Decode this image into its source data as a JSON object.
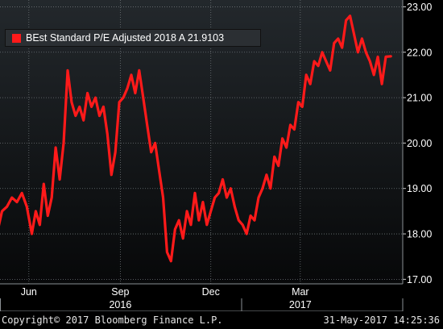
{
  "chart_data": {
    "type": "line",
    "series": [
      {
        "name": "BEst Standard P/E Adjusted 2018 A",
        "last_value_label": "21.9103",
        "color": "#ff1a1a",
        "x": [
          "2016-05-01",
          "2016-05-05",
          "2016-05-10",
          "2016-05-15",
          "2016-05-20",
          "2016-05-25",
          "2016-05-30",
          "2016-06-04",
          "2016-06-08",
          "2016-06-12",
          "2016-06-16",
          "2016-06-20",
          "2016-06-24",
          "2016-06-28",
          "2016-07-02",
          "2016-07-06",
          "2016-07-10",
          "2016-07-14",
          "2016-07-18",
          "2016-07-22",
          "2016-07-26",
          "2016-07-30",
          "2016-08-03",
          "2016-08-07",
          "2016-08-11",
          "2016-08-15",
          "2016-08-19",
          "2016-08-23",
          "2016-08-27",
          "2016-08-31",
          "2016-09-04",
          "2016-09-08",
          "2016-09-12",
          "2016-09-16",
          "2016-09-20",
          "2016-09-24",
          "2016-09-28",
          "2016-10-02",
          "2016-10-06",
          "2016-10-10",
          "2016-10-14",
          "2016-10-18",
          "2016-10-22",
          "2016-10-26",
          "2016-10-30",
          "2016-11-03",
          "2016-11-07",
          "2016-11-11",
          "2016-11-15",
          "2016-11-19",
          "2016-11-23",
          "2016-11-27",
          "2016-12-01",
          "2016-12-05",
          "2016-12-09",
          "2016-12-13",
          "2016-12-17",
          "2016-12-21",
          "2016-12-25",
          "2016-12-29",
          "2017-01-02",
          "2017-01-06",
          "2017-01-10",
          "2017-01-14",
          "2017-01-18",
          "2017-01-22",
          "2017-01-26",
          "2017-01-30",
          "2017-02-03",
          "2017-02-07",
          "2017-02-11",
          "2017-02-15",
          "2017-02-19",
          "2017-02-23",
          "2017-02-27",
          "2017-03-03",
          "2017-03-07",
          "2017-03-11",
          "2017-03-15",
          "2017-03-19",
          "2017-03-23",
          "2017-03-27",
          "2017-03-31",
          "2017-04-04",
          "2017-04-08",
          "2017-04-12",
          "2017-04-16",
          "2017-04-20",
          "2017-04-24",
          "2017-04-28",
          "2017-05-02",
          "2017-05-06",
          "2017-05-10",
          "2017-05-14",
          "2017-05-18",
          "2017-05-22",
          "2017-05-26",
          "2017-05-31"
        ],
        "y": [
          18.1,
          18.5,
          18.6,
          18.8,
          18.7,
          18.9,
          18.6,
          18.0,
          18.5,
          18.2,
          19.1,
          18.4,
          18.8,
          19.9,
          19.2,
          20.0,
          21.6,
          20.9,
          20.6,
          20.8,
          20.5,
          21.1,
          20.8,
          21.0,
          20.6,
          20.8,
          20.2,
          19.3,
          19.8,
          20.9,
          21.0,
          21.2,
          21.5,
          21.1,
          21.6,
          21.0,
          20.4,
          19.8,
          20.0,
          19.4,
          18.8,
          17.6,
          17.4,
          18.1,
          18.3,
          17.9,
          18.5,
          18.2,
          18.9,
          18.3,
          18.7,
          18.2,
          18.5,
          18.8,
          18.9,
          19.2,
          18.8,
          19.0,
          18.6,
          18.3,
          18.2,
          18.0,
          18.4,
          18.3,
          18.8,
          19.0,
          19.3,
          19.0,
          19.7,
          19.5,
          20.1,
          19.9,
          20.4,
          20.3,
          20.9,
          20.8,
          21.5,
          21.3,
          21.8,
          21.7,
          22.0,
          21.8,
          21.6,
          22.2,
          22.3,
          22.1,
          22.7,
          22.8,
          22.4,
          22.0,
          22.3,
          22.0,
          21.8,
          21.5,
          21.9,
          21.3,
          21.9,
          21.91
        ]
      }
    ],
    "xlim": [
      "2016-05-03",
      "2017-06-12"
    ],
    "ylim": [
      16.9,
      23.15
    ],
    "y_ticks": [
      "17.00",
      "18.00",
      "19.00",
      "20.00",
      "21.00",
      "22.00",
      "23.00"
    ],
    "x_ticks": [
      {
        "date": "2016-06-01",
        "label": "Jun"
      },
      {
        "date": "2016-09-01",
        "label": "Sep"
      },
      {
        "date": "2016-12-01",
        "label": "Dec"
      },
      {
        "date": "2017-03-01",
        "label": "Mar"
      }
    ],
    "x_years": [
      {
        "date": "2016-09-01",
        "label": "2016"
      },
      {
        "date": "2017-03-01",
        "label": "2017"
      }
    ],
    "year_boundaries": [
      "2016-05-03",
      "2017-01-01",
      "2017-06-12"
    ],
    "grid": true,
    "legend": "top-left",
    "colors": {
      "background_top": "#23282c",
      "background_bottom": "#070809",
      "line": "#ff1a1a",
      "grid": "#6e7478",
      "axis_text": "#ffffff"
    }
  },
  "footer": {
    "copyright": "Copyright© 2017 Bloomberg Finance L.P.",
    "timestamp": "31-May-2017 14:25:36"
  }
}
